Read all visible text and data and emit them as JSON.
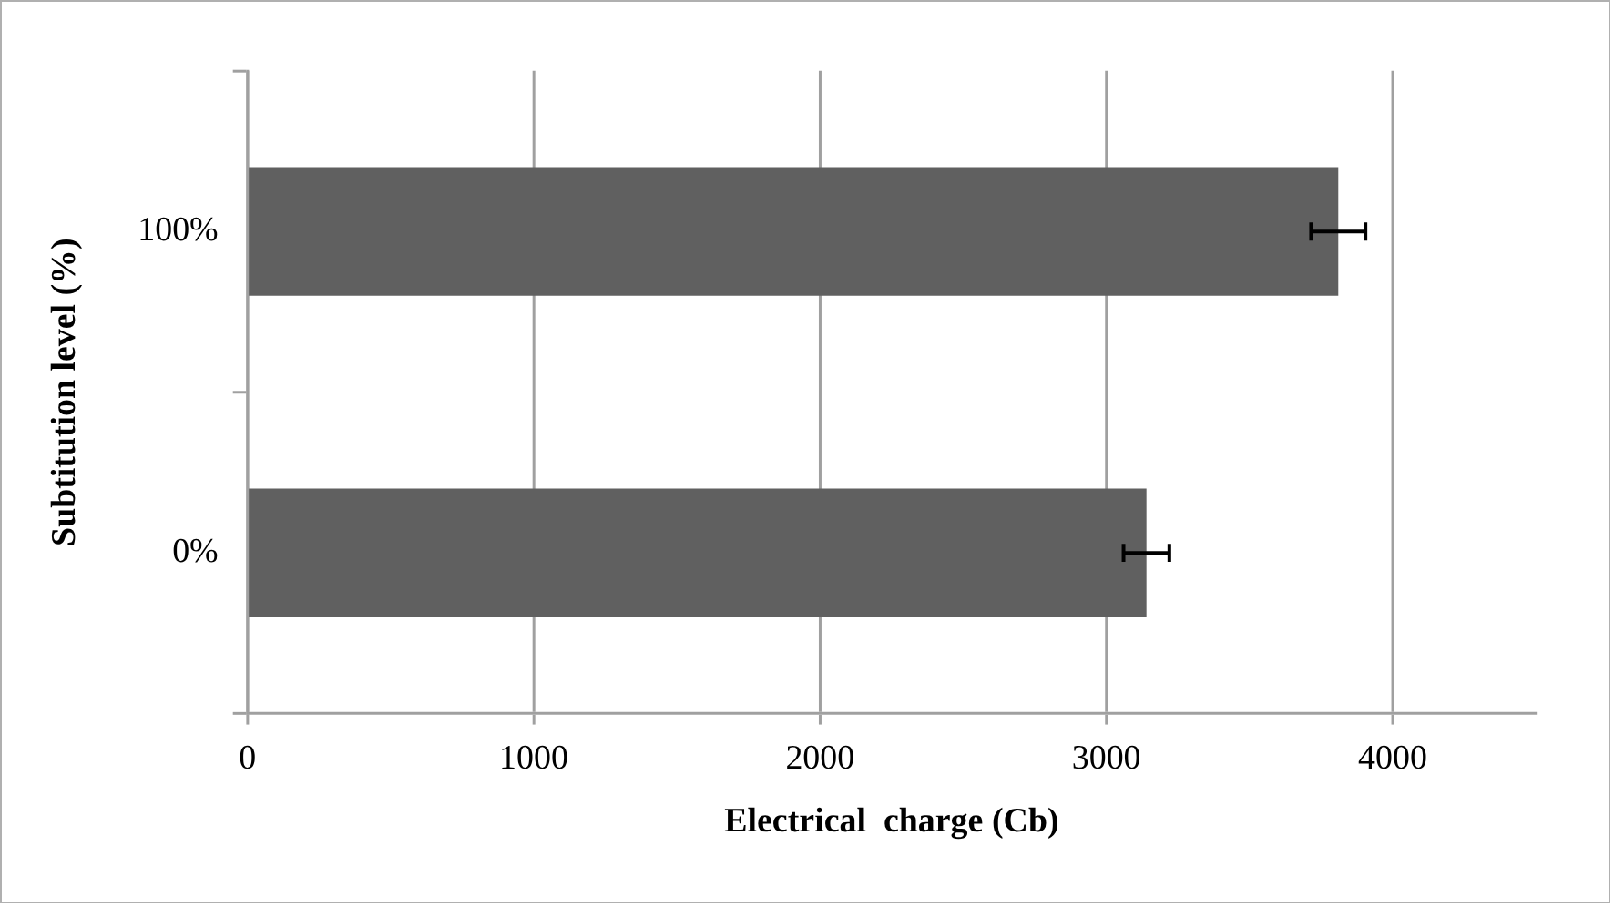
{
  "chart_data": {
    "type": "bar",
    "orientation": "horizontal",
    "categories": [
      "100%",
      "0%"
    ],
    "values": [
      3810,
      3140
    ],
    "errors": [
      95,
      80
    ],
    "color": "#606060",
    "xlabel": "Electrical  charge (Cb)",
    "ylabel": "Subtitution level (%)",
    "xlim": [
      0,
      4500
    ],
    "xticks": [
      0,
      1000,
      2000,
      3000,
      4000
    ],
    "grid": "x",
    "legend": false
  }
}
